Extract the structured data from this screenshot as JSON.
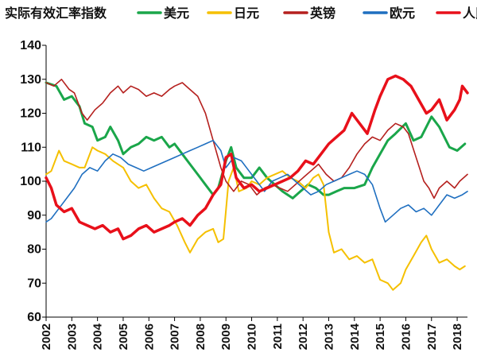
{
  "chart_data": {
    "type": "line",
    "title": "实际有效汇率指数",
    "xlabel": "",
    "ylabel": "",
    "xlim": [
      2002,
      2018.4
    ],
    "ylim": [
      60,
      140
    ],
    "yticks": [
      60,
      70,
      80,
      90,
      100,
      110,
      120,
      130,
      140
    ],
    "xticks": [
      "2002",
      "2003",
      "2004",
      "2005",
      "2006",
      "2007",
      "2008",
      "2009",
      "2010",
      "2011",
      "2012",
      "2013",
      "2014",
      "2015",
      "2016",
      "2017",
      "2018"
    ],
    "grid": false,
    "legend_position": "top",
    "series": [
      {
        "name": "美元",
        "color": "#1aa64a",
        "width": 3,
        "points": [
          [
            2002,
            129
          ],
          [
            2002.4,
            128
          ],
          [
            2002.7,
            124
          ],
          [
            2003,
            125
          ],
          [
            2003.3,
            122
          ],
          [
            2003.5,
            117
          ],
          [
            2003.8,
            116
          ],
          [
            2004,
            112
          ],
          [
            2004.3,
            113
          ],
          [
            2004.5,
            116
          ],
          [
            2004.8,
            112
          ],
          [
            2005,
            108
          ],
          [
            2005.3,
            110
          ],
          [
            2005.6,
            111
          ],
          [
            2005.9,
            113
          ],
          [
            2006.2,
            112
          ],
          [
            2006.5,
            113
          ],
          [
            2006.8,
            110
          ],
          [
            2007,
            111
          ],
          [
            2007.3,
            108
          ],
          [
            2007.6,
            105
          ],
          [
            2007.9,
            102
          ],
          [
            2008.2,
            99
          ],
          [
            2008.5,
            96
          ],
          [
            2008.7,
            98
          ],
          [
            2009,
            106
          ],
          [
            2009.2,
            110
          ],
          [
            2009.4,
            104
          ],
          [
            2009.7,
            101
          ],
          [
            2010,
            101
          ],
          [
            2010.3,
            104
          ],
          [
            2010.6,
            101
          ],
          [
            2010.9,
            99
          ],
          [
            2011.2,
            97
          ],
          [
            2011.6,
            95
          ],
          [
            2011.9,
            97
          ],
          [
            2012.2,
            99
          ],
          [
            2012.5,
            98
          ],
          [
            2012.8,
            96
          ],
          [
            2013,
            96
          ],
          [
            2013.3,
            97
          ],
          [
            2013.6,
            98
          ],
          [
            2014,
            98
          ],
          [
            2014.4,
            99
          ],
          [
            2014.7,
            104
          ],
          [
            2015,
            108
          ],
          [
            2015.3,
            112
          ],
          [
            2015.6,
            114
          ],
          [
            2016,
            117
          ],
          [
            2016.3,
            112
          ],
          [
            2016.6,
            113
          ],
          [
            2017,
            119
          ],
          [
            2017.3,
            116
          ],
          [
            2017.7,
            110
          ],
          [
            2018,
            109
          ],
          [
            2018.3,
            111
          ]
        ]
      },
      {
        "name": "日元",
        "color": "#f5c000",
        "width": 2,
        "points": [
          [
            2002,
            102
          ],
          [
            2002.2,
            103
          ],
          [
            2002.5,
            109
          ],
          [
            2002.7,
            106
          ],
          [
            2003,
            105
          ],
          [
            2003.3,
            104
          ],
          [
            2003.5,
            104
          ],
          [
            2003.8,
            110
          ],
          [
            2004,
            109
          ],
          [
            2004.3,
            108
          ],
          [
            2004.6,
            106
          ],
          [
            2005,
            104
          ],
          [
            2005.3,
            100
          ],
          [
            2005.6,
            98
          ],
          [
            2005.9,
            99
          ],
          [
            2006.2,
            95
          ],
          [
            2006.5,
            92
          ],
          [
            2006.8,
            91
          ],
          [
            2007.1,
            87
          ],
          [
            2007.4,
            82
          ],
          [
            2007.6,
            79
          ],
          [
            2007.9,
            83
          ],
          [
            2008.2,
            85
          ],
          [
            2008.5,
            86
          ],
          [
            2008.7,
            82
          ],
          [
            2008.9,
            83
          ],
          [
            2009.1,
            100
          ],
          [
            2009.3,
            104
          ],
          [
            2009.5,
            97
          ],
          [
            2009.8,
            98
          ],
          [
            2010,
            100
          ],
          [
            2010.3,
            99
          ],
          [
            2010.6,
            101
          ],
          [
            2010.9,
            102
          ],
          [
            2011.2,
            103
          ],
          [
            2011.5,
            101
          ],
          [
            2011.8,
            100
          ],
          [
            2012.1,
            98
          ],
          [
            2012.4,
            101
          ],
          [
            2012.6,
            102
          ],
          [
            2012.8,
            99
          ],
          [
            2013,
            85
          ],
          [
            2013.2,
            79
          ],
          [
            2013.5,
            80
          ],
          [
            2013.8,
            77
          ],
          [
            2014.1,
            78
          ],
          [
            2014.4,
            76
          ],
          [
            2014.7,
            77
          ],
          [
            2015,
            71
          ],
          [
            2015.3,
            70
          ],
          [
            2015.5,
            68
          ],
          [
            2015.8,
            70
          ],
          [
            2016,
            74
          ],
          [
            2016.3,
            78
          ],
          [
            2016.6,
            82
          ],
          [
            2016.8,
            84
          ],
          [
            2017,
            80
          ],
          [
            2017.3,
            76
          ],
          [
            2017.6,
            77
          ],
          [
            2017.9,
            75
          ],
          [
            2018.1,
            74
          ],
          [
            2018.3,
            75
          ]
        ]
      },
      {
        "name": "英镑",
        "color": "#b5201e",
        "width": 1.6,
        "points": [
          [
            2002,
            129
          ],
          [
            2002.3,
            128
          ],
          [
            2002.6,
            130
          ],
          [
            2002.9,
            127
          ],
          [
            2003.1,
            126
          ],
          [
            2003.4,
            120
          ],
          [
            2003.6,
            118
          ],
          [
            2003.9,
            121
          ],
          [
            2004.2,
            123
          ],
          [
            2004.5,
            126
          ],
          [
            2004.8,
            128
          ],
          [
            2005,
            126
          ],
          [
            2005.3,
            128
          ],
          [
            2005.6,
            127
          ],
          [
            2005.9,
            125
          ],
          [
            2006.2,
            126
          ],
          [
            2006.5,
            125
          ],
          [
            2006.8,
            127
          ],
          [
            2007,
            128
          ],
          [
            2007.3,
            129
          ],
          [
            2007.6,
            127
          ],
          [
            2007.9,
            125
          ],
          [
            2008.2,
            120
          ],
          [
            2008.5,
            112
          ],
          [
            2008.8,
            104
          ],
          [
            2009,
            100
          ],
          [
            2009.3,
            97
          ],
          [
            2009.6,
            100
          ],
          [
            2009.9,
            99
          ],
          [
            2010.2,
            96
          ],
          [
            2010.5,
            98
          ],
          [
            2010.8,
            99
          ],
          [
            2011.1,
            98
          ],
          [
            2011.4,
            97
          ],
          [
            2011.7,
            99
          ],
          [
            2012,
            101
          ],
          [
            2012.3,
            103
          ],
          [
            2012.6,
            105
          ],
          [
            2012.9,
            102
          ],
          [
            2013.2,
            100
          ],
          [
            2013.5,
            101
          ],
          [
            2013.8,
            104
          ],
          [
            2014.1,
            108
          ],
          [
            2014.4,
            111
          ],
          [
            2014.7,
            113
          ],
          [
            2015,
            112
          ],
          [
            2015.3,
            115
          ],
          [
            2015.6,
            117
          ],
          [
            2015.9,
            116
          ],
          [
            2016.1,
            114
          ],
          [
            2016.4,
            107
          ],
          [
            2016.7,
            100
          ],
          [
            2016.9,
            98
          ],
          [
            2017.1,
            95
          ],
          [
            2017.3,
            98
          ],
          [
            2017.6,
            100
          ],
          [
            2017.9,
            98
          ],
          [
            2018.1,
            100
          ],
          [
            2018.4,
            102
          ]
        ]
      },
      {
        "name": "欧元",
        "color": "#1f6fc0",
        "width": 1.6,
        "points": [
          [
            2002,
            88
          ],
          [
            2002.2,
            89
          ],
          [
            2002.5,
            92
          ],
          [
            2002.8,
            95
          ],
          [
            2003.1,
            98
          ],
          [
            2003.4,
            102
          ],
          [
            2003.7,
            104
          ],
          [
            2004,
            103
          ],
          [
            2004.3,
            106
          ],
          [
            2004.6,
            108
          ],
          [
            2004.9,
            107
          ],
          [
            2005.2,
            105
          ],
          [
            2005.5,
            104
          ],
          [
            2005.8,
            103
          ],
          [
            2006.1,
            104
          ],
          [
            2006.4,
            105
          ],
          [
            2006.7,
            106
          ],
          [
            2007,
            107
          ],
          [
            2007.3,
            108
          ],
          [
            2007.6,
            109
          ],
          [
            2007.9,
            110
          ],
          [
            2008.2,
            111
          ],
          [
            2008.5,
            112
          ],
          [
            2008.8,
            109
          ],
          [
            2009,
            104
          ],
          [
            2009.3,
            107
          ],
          [
            2009.6,
            106
          ],
          [
            2009.9,
            103
          ],
          [
            2010.2,
            100
          ],
          [
            2010.5,
            97
          ],
          [
            2010.8,
            100
          ],
          [
            2011.1,
            101
          ],
          [
            2011.4,
            102
          ],
          [
            2011.7,
            100
          ],
          [
            2012,
            98
          ],
          [
            2012.3,
            96
          ],
          [
            2012.6,
            97
          ],
          [
            2012.9,
            99
          ],
          [
            2013.2,
            100
          ],
          [
            2013.5,
            101
          ],
          [
            2013.8,
            102
          ],
          [
            2014.1,
            103
          ],
          [
            2014.4,
            102
          ],
          [
            2014.7,
            99
          ],
          [
            2015,
            92
          ],
          [
            2015.2,
            88
          ],
          [
            2015.5,
            90
          ],
          [
            2015.8,
            92
          ],
          [
            2016.1,
            93
          ],
          [
            2016.4,
            91
          ],
          [
            2016.7,
            92
          ],
          [
            2017,
            90
          ],
          [
            2017.3,
            93
          ],
          [
            2017.6,
            96
          ],
          [
            2017.9,
            95
          ],
          [
            2018.2,
            96
          ],
          [
            2018.4,
            97
          ]
        ]
      },
      {
        "name": "人民币",
        "color": "#e8101a",
        "width": 3.5,
        "points": [
          [
            2002,
            101
          ],
          [
            2002.2,
            98
          ],
          [
            2002.4,
            93
          ],
          [
            2002.7,
            91
          ],
          [
            2003,
            92
          ],
          [
            2003.3,
            88
          ],
          [
            2003.6,
            87
          ],
          [
            2003.9,
            86
          ],
          [
            2004.2,
            87
          ],
          [
            2004.5,
            85
          ],
          [
            2004.8,
            86
          ],
          [
            2005,
            83
          ],
          [
            2005.3,
            84
          ],
          [
            2005.6,
            86
          ],
          [
            2005.9,
            87
          ],
          [
            2006.2,
            85
          ],
          [
            2006.5,
            86
          ],
          [
            2006.8,
            87
          ],
          [
            2007,
            88
          ],
          [
            2007.3,
            89
          ],
          [
            2007.6,
            87
          ],
          [
            2007.9,
            90
          ],
          [
            2008.2,
            92
          ],
          [
            2008.5,
            96
          ],
          [
            2008.8,
            99
          ],
          [
            2009,
            107
          ],
          [
            2009.2,
            108
          ],
          [
            2009.4,
            101
          ],
          [
            2009.7,
            98
          ],
          [
            2010,
            99
          ],
          [
            2010.3,
            97
          ],
          [
            2010.6,
            98
          ],
          [
            2010.9,
            99
          ],
          [
            2011.2,
            100
          ],
          [
            2011.5,
            101
          ],
          [
            2011.8,
            103
          ],
          [
            2012.1,
            106
          ],
          [
            2012.4,
            105
          ],
          [
            2012.7,
            108
          ],
          [
            2013,
            111
          ],
          [
            2013.3,
            113
          ],
          [
            2013.6,
            115
          ],
          [
            2013.9,
            120
          ],
          [
            2014.2,
            117
          ],
          [
            2014.5,
            114
          ],
          [
            2014.8,
            121
          ],
          [
            2015,
            125
          ],
          [
            2015.3,
            130
          ],
          [
            2015.6,
            131
          ],
          [
            2015.9,
            130
          ],
          [
            2016.2,
            128
          ],
          [
            2016.5,
            124
          ],
          [
            2016.8,
            120
          ],
          [
            2017,
            121
          ],
          [
            2017.3,
            124
          ],
          [
            2017.6,
            118
          ],
          [
            2017.9,
            121
          ],
          [
            2018.1,
            124
          ],
          [
            2018.2,
            128
          ],
          [
            2018.4,
            126
          ]
        ]
      }
    ]
  }
}
